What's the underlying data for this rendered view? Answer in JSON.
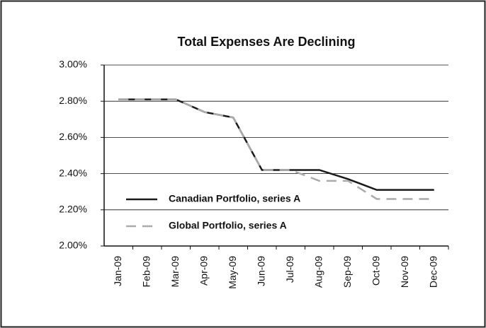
{
  "chart_data": {
    "type": "line",
    "title": "Total Expenses Are Declining",
    "categories": [
      "Jan-09",
      "Feb-09",
      "Mar-09",
      "Apr-09",
      "May-09",
      "Jun-09",
      "Jul-09",
      "Aug-09",
      "Sep-09",
      "Oct-09",
      "Nov-09",
      "Dec-09"
    ],
    "series": [
      {
        "name": "Canadian Portfolio, series A",
        "color": "#1a1a1a",
        "line_style": "solid",
        "values": [
          2.81,
          2.81,
          2.81,
          2.74,
          2.71,
          2.42,
          2.42,
          2.42,
          2.37,
          2.31,
          2.31,
          2.31
        ]
      },
      {
        "name": "Global Portfolio, series A",
        "color": "#aaaaaa",
        "line_style": "dashed",
        "values": [
          2.81,
          2.81,
          2.81,
          2.74,
          2.71,
          2.42,
          2.42,
          2.36,
          2.36,
          2.26,
          2.26,
          2.26
        ]
      }
    ],
    "ylim": [
      2.0,
      3.0
    ],
    "yticks": [
      {
        "value": 2.0,
        "label": "2.00%"
      },
      {
        "value": 2.2,
        "label": "2.20%"
      },
      {
        "value": 2.4,
        "label": "2.40%"
      },
      {
        "value": 2.6,
        "label": "2.60%"
      },
      {
        "value": 2.8,
        "label": "2.80%"
      },
      {
        "value": 3.0,
        "label": "3.00%"
      }
    ],
    "grid": true,
    "legend": "lower left"
  }
}
